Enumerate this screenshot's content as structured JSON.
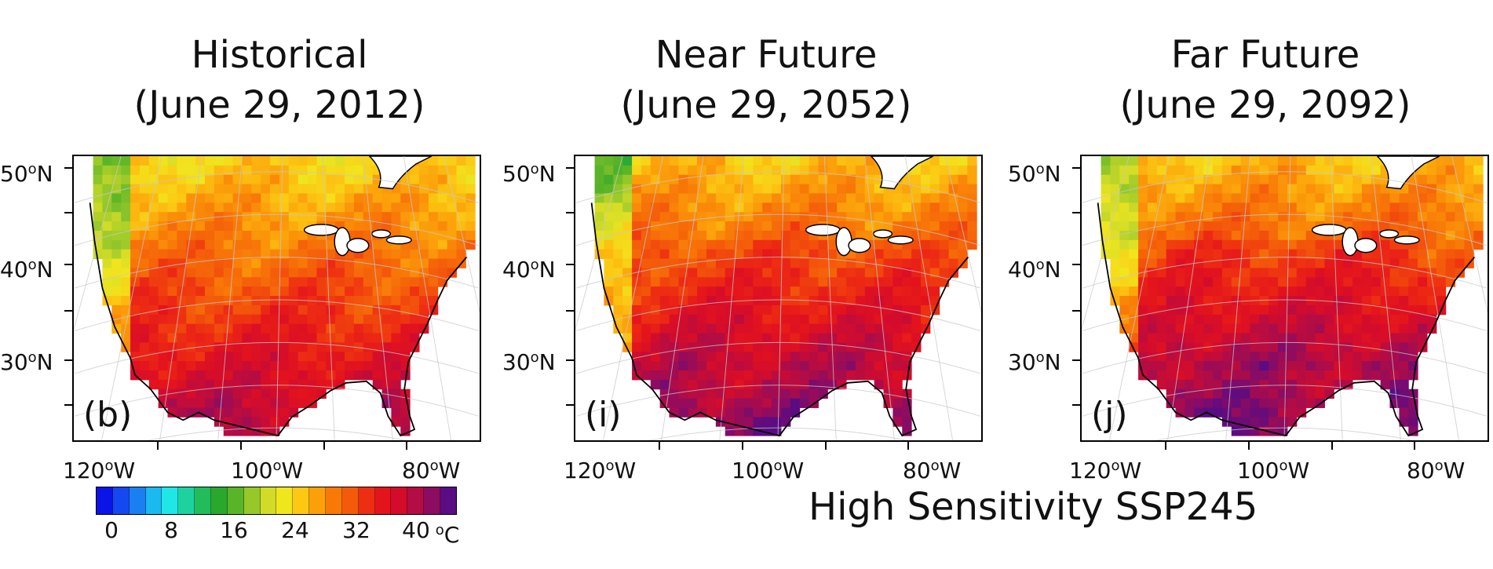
{
  "panels": [
    {
      "title_line1": "Historical",
      "title_line2": "(June 29, 2012)",
      "letter": "(b)",
      "intensity": 0.0
    },
    {
      "title_line1": "Near Future",
      "title_line2": "(June 29, 2052)",
      "letter": "(i)",
      "intensity": 0.55
    },
    {
      "title_line1": "Far Future",
      "title_line2": "(June 29, 2092)",
      "letter": "(j)",
      "intensity": 0.8
    }
  ],
  "lat_labels": [
    "50",
    "40",
    "30"
  ],
  "lat_suffix": "N",
  "lon_labels": [
    "120",
    "100",
    "80"
  ],
  "lon_suffix": "W",
  "degree_symbol": "o",
  "colorbar": {
    "colors": [
      "#0a14e6",
      "#1448f0",
      "#1a80f2",
      "#1cb8f0",
      "#20e6e6",
      "#1ed2a0",
      "#22bc5a",
      "#2aa82e",
      "#5ab428",
      "#96c82a",
      "#d2dc28",
      "#f0e61e",
      "#fcc814",
      "#fca00a",
      "#f87808",
      "#f45a0a",
      "#ee2e12",
      "#e4141c",
      "#d40c2c",
      "#b40c44",
      "#8c0c62",
      "#5a0c82"
    ],
    "labels": [
      "0",
      "8",
      "16",
      "24",
      "32",
      "40"
    ],
    "unit": "oC"
  },
  "caption": "High Sensitivity SSP245"
}
